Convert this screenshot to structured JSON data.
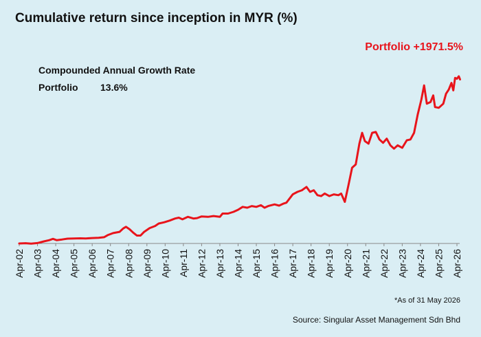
{
  "chart_data": {
    "type": "line",
    "title": "Cumulative return since inception in MYR (%)",
    "xlabel": "",
    "ylabel": "",
    "x_tick_labels": [
      "Apr-02",
      "Apr-03",
      "Apr-04",
      "Apr-05",
      "Apr-06",
      "Apr-07",
      "Apr-08",
      "Apr-09",
      "Apr-10",
      "Apr-11",
      "Apr-12",
      "Apr-13",
      "Apr-14",
      "Apr-15",
      "Apr-16",
      "Apr-17",
      "Apr-18",
      "Apr-19",
      "Apr-20",
      "Apr-21",
      "Apr-22",
      "Apr-23",
      "Apr-24",
      "Apr-25",
      "Apr-26"
    ],
    "ylim": [
      0,
      2100
    ],
    "grid": false,
    "legend": "none",
    "series": [
      {
        "name": "Portfolio",
        "color": "#e8141b",
        "end_label": "Portfolio +1971.5%",
        "points": [
          [
            2002.25,
            0
          ],
          [
            2002.6,
            3
          ],
          [
            2002.9,
            -2
          ],
          [
            2003.25,
            5
          ],
          [
            2003.6,
            25
          ],
          [
            2003.9,
            40
          ],
          [
            2004.1,
            55
          ],
          [
            2004.3,
            40
          ],
          [
            2004.6,
            48
          ],
          [
            2004.9,
            58
          ],
          [
            2005.25,
            60
          ],
          [
            2005.6,
            62
          ],
          [
            2005.9,
            60
          ],
          [
            2006.25,
            65
          ],
          [
            2006.6,
            68
          ],
          [
            2006.9,
            75
          ],
          [
            2007.1,
            100
          ],
          [
            2007.4,
            125
          ],
          [
            2007.75,
            140
          ],
          [
            2007.95,
            180
          ],
          [
            2008.1,
            200
          ],
          [
            2008.3,
            170
          ],
          [
            2008.5,
            130
          ],
          [
            2008.7,
            95
          ],
          [
            2008.9,
            95
          ],
          [
            2009.1,
            140
          ],
          [
            2009.4,
            185
          ],
          [
            2009.7,
            210
          ],
          [
            2009.9,
            240
          ],
          [
            2010.2,
            255
          ],
          [
            2010.5,
            275
          ],
          [
            2010.8,
            300
          ],
          [
            2011.0,
            310
          ],
          [
            2011.2,
            290
          ],
          [
            2011.5,
            320
          ],
          [
            2011.8,
            300
          ],
          [
            2012.0,
            305
          ],
          [
            2012.25,
            325
          ],
          [
            2012.6,
            320
          ],
          [
            2012.9,
            330
          ],
          [
            2013.25,
            320
          ],
          [
            2013.4,
            360
          ],
          [
            2013.7,
            360
          ],
          [
            2014.0,
            380
          ],
          [
            2014.25,
            405
          ],
          [
            2014.5,
            440
          ],
          [
            2014.75,
            430
          ],
          [
            2015.0,
            450
          ],
          [
            2015.25,
            440
          ],
          [
            2015.5,
            460
          ],
          [
            2015.7,
            430
          ],
          [
            2015.9,
            450
          ],
          [
            2016.25,
            470
          ],
          [
            2016.5,
            455
          ],
          [
            2016.75,
            480
          ],
          [
            2016.9,
            490
          ],
          [
            2017.25,
            590
          ],
          [
            2017.5,
            620
          ],
          [
            2017.75,
            640
          ],
          [
            2018.0,
            680
          ],
          [
            2018.2,
            620
          ],
          [
            2018.4,
            640
          ],
          [
            2018.6,
            580
          ],
          [
            2018.8,
            570
          ],
          [
            2019.0,
            600
          ],
          [
            2019.25,
            570
          ],
          [
            2019.5,
            590
          ],
          [
            2019.75,
            580
          ],
          [
            2019.9,
            600
          ],
          [
            2020.1,
            500
          ],
          [
            2020.3,
            700
          ],
          [
            2020.5,
            910
          ],
          [
            2020.7,
            950
          ],
          [
            2020.9,
            1200
          ],
          [
            2021.05,
            1330
          ],
          [
            2021.2,
            1230
          ],
          [
            2021.4,
            1200
          ],
          [
            2021.6,
            1330
          ],
          [
            2021.8,
            1340
          ],
          [
            2022.0,
            1250
          ],
          [
            2022.2,
            1210
          ],
          [
            2022.4,
            1260
          ],
          [
            2022.6,
            1180
          ],
          [
            2022.8,
            1140
          ],
          [
            2023.0,
            1180
          ],
          [
            2023.25,
            1150
          ],
          [
            2023.5,
            1240
          ],
          [
            2023.7,
            1250
          ],
          [
            2023.9,
            1330
          ],
          [
            2024.1,
            1550
          ],
          [
            2024.3,
            1730
          ],
          [
            2024.45,
            1900
          ],
          [
            2024.6,
            1680
          ],
          [
            2024.8,
            1700
          ],
          [
            2024.95,
            1780
          ],
          [
            2025.05,
            1640
          ],
          [
            2025.25,
            1630
          ],
          [
            2025.5,
            1680
          ],
          [
            2025.65,
            1800
          ],
          [
            2025.8,
            1850
          ],
          [
            2025.95,
            1930
          ],
          [
            2026.05,
            1840
          ],
          [
            2026.15,
            1990
          ],
          [
            2026.25,
            1980
          ],
          [
            2026.35,
            2010
          ],
          [
            2026.42,
            1971.5
          ]
        ]
      }
    ]
  },
  "cagr": {
    "heading": "Compounded Annual Growth Rate",
    "label": "Portfolio",
    "value": "13.6%"
  },
  "footnote": "*As of 31 May 2026",
  "source": "Source: Singular Asset Management Sdn Bhd"
}
